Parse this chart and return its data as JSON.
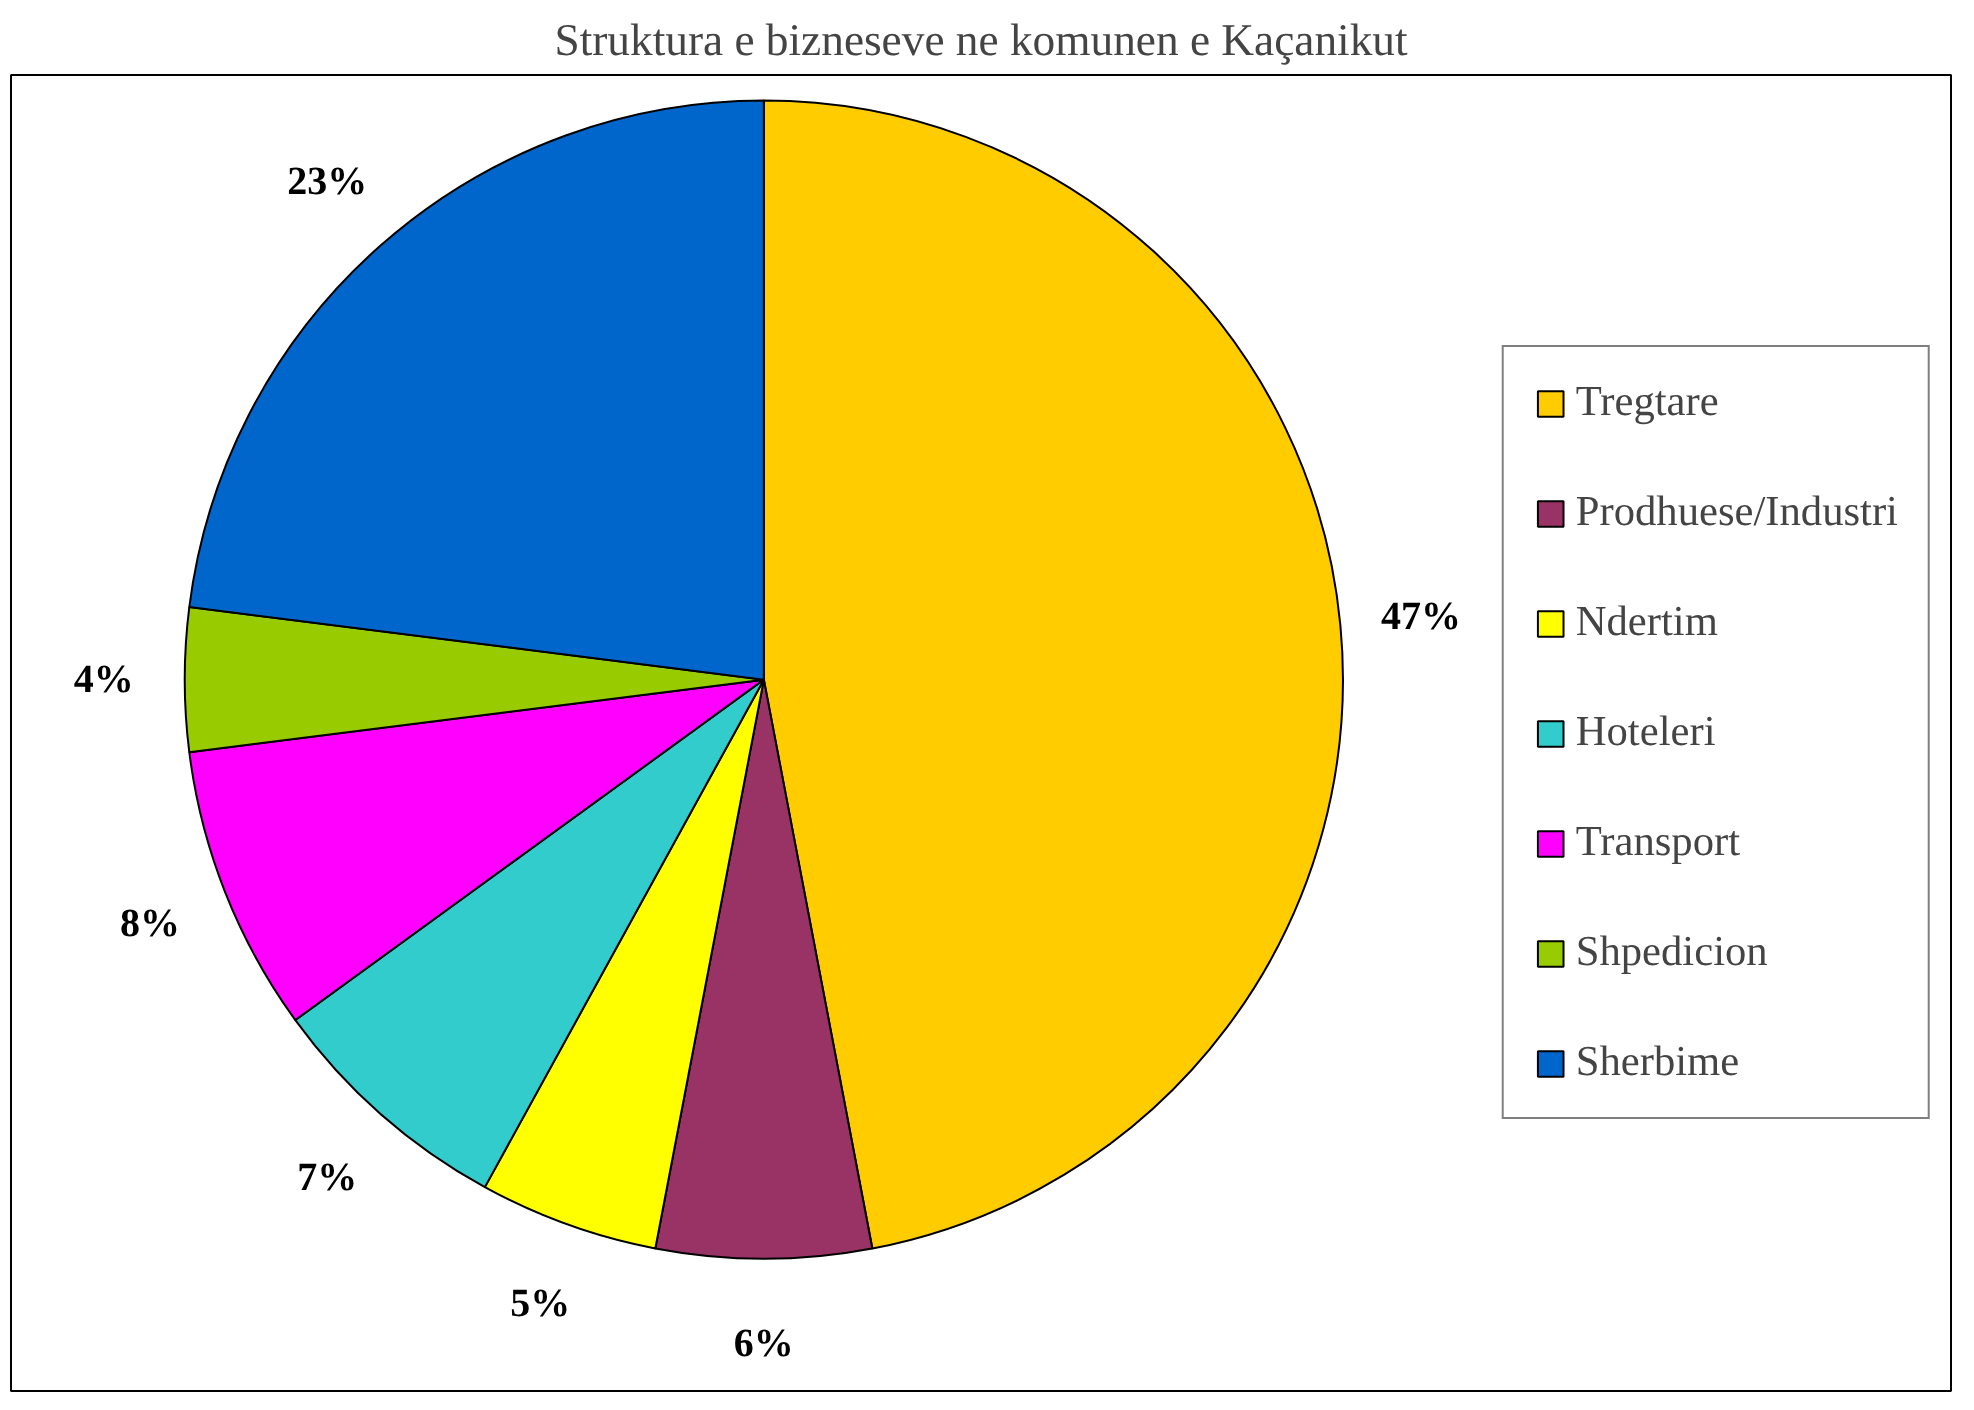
{
  "chart_data": {
    "type": "pie",
    "title": "Struktura e bizneseve ne komunen e Kaçanikut",
    "categories": [
      "Tregtare",
      "Prodhuese/Industri",
      "Ndertim",
      "Hoteleri",
      "Transport",
      "Shpedicion",
      "Sherbime"
    ],
    "values": [
      47,
      6,
      5,
      7,
      8,
      4,
      23
    ],
    "value_labels": [
      "47%",
      "6%",
      "5%",
      "7%",
      "8%",
      "4%",
      "23%"
    ],
    "colors": [
      "#ffcc00",
      "#993366",
      "#ffff00",
      "#33cccc",
      "#ff00ff",
      "#99cc00",
      "#0066cc"
    ],
    "legend": "right"
  }
}
